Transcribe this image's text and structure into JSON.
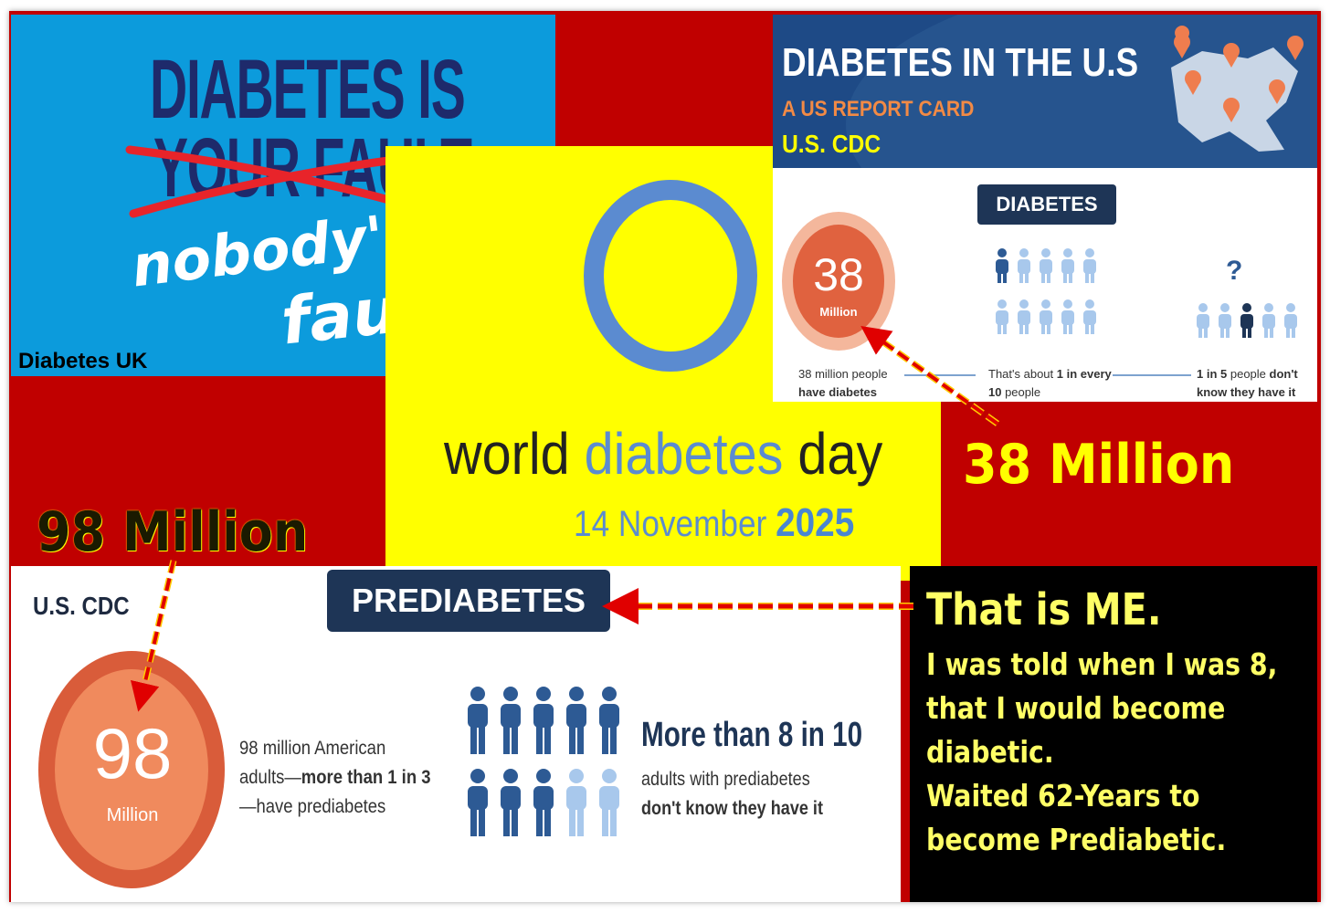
{
  "diabetes_uk": {
    "line1": "DIABETES IS",
    "line2": "YOUR FAULT",
    "line3": "nobody's",
    "line4": "fault",
    "source": "Diabetes UK"
  },
  "world_day": {
    "word1": "world",
    "word2": "diabetes",
    "word3": "day",
    "date": "14 November",
    "year": "2025"
  },
  "cdc_diabetes": {
    "title": "DIABETES IN THE U.S",
    "subtitle": "A US REPORT CARD",
    "source": "U.S. CDC",
    "badge": "DIABETES",
    "circle_number": "38",
    "circle_unit": "Million",
    "stat1_line1": "38 million people",
    "stat1_line2": "have diabetes",
    "stat2_pre": "That's about ",
    "stat2_bold": "1 in every",
    "stat2_line2": "10",
    "stat2_line2_rest": " people",
    "stat3_bold": "1 in 5",
    "stat3_mid": " people ",
    "stat3_bold2": "don't",
    "stat3_line2": "know they have it",
    "question": "?"
  },
  "callouts": {
    "c38": "38 Million",
    "c98": "98 Million"
  },
  "cdc_prediabetes": {
    "source": "U.S. CDC",
    "badge": "PREDIABETES",
    "circle_number": "98",
    "circle_unit": "Million",
    "stat1_line1": "98 million American",
    "stat1_line2_pre": "adults—",
    "stat1_line2_bold": "more than 1 in 3",
    "stat1_line3": "—have prediabetes",
    "stat2_head": "More than 8 in 10",
    "stat2_line1": "adults with prediabetes",
    "stat2_line2": "don't know they have it"
  },
  "personal": {
    "headline": "That is ME.",
    "line1": "I was told when I was 8,",
    "line2": "that I would become",
    "line3": "diabetic.",
    "line4": "Waited 62-Years to",
    "line5": "become Prediabetic."
  },
  "colors": {
    "background_red": "#c00000",
    "uk_blue": "#0c9bdc",
    "navy": "#1e2a6b",
    "yellow": "#ffff00",
    "wdd_blue": "#5b8bd0",
    "cdc_navy": "#1e4a86",
    "orange": "#f08a5d",
    "orange_dark": "#d95c3a",
    "figure_light": "#a8c8ec",
    "figure_dark": "#2d5a94"
  }
}
